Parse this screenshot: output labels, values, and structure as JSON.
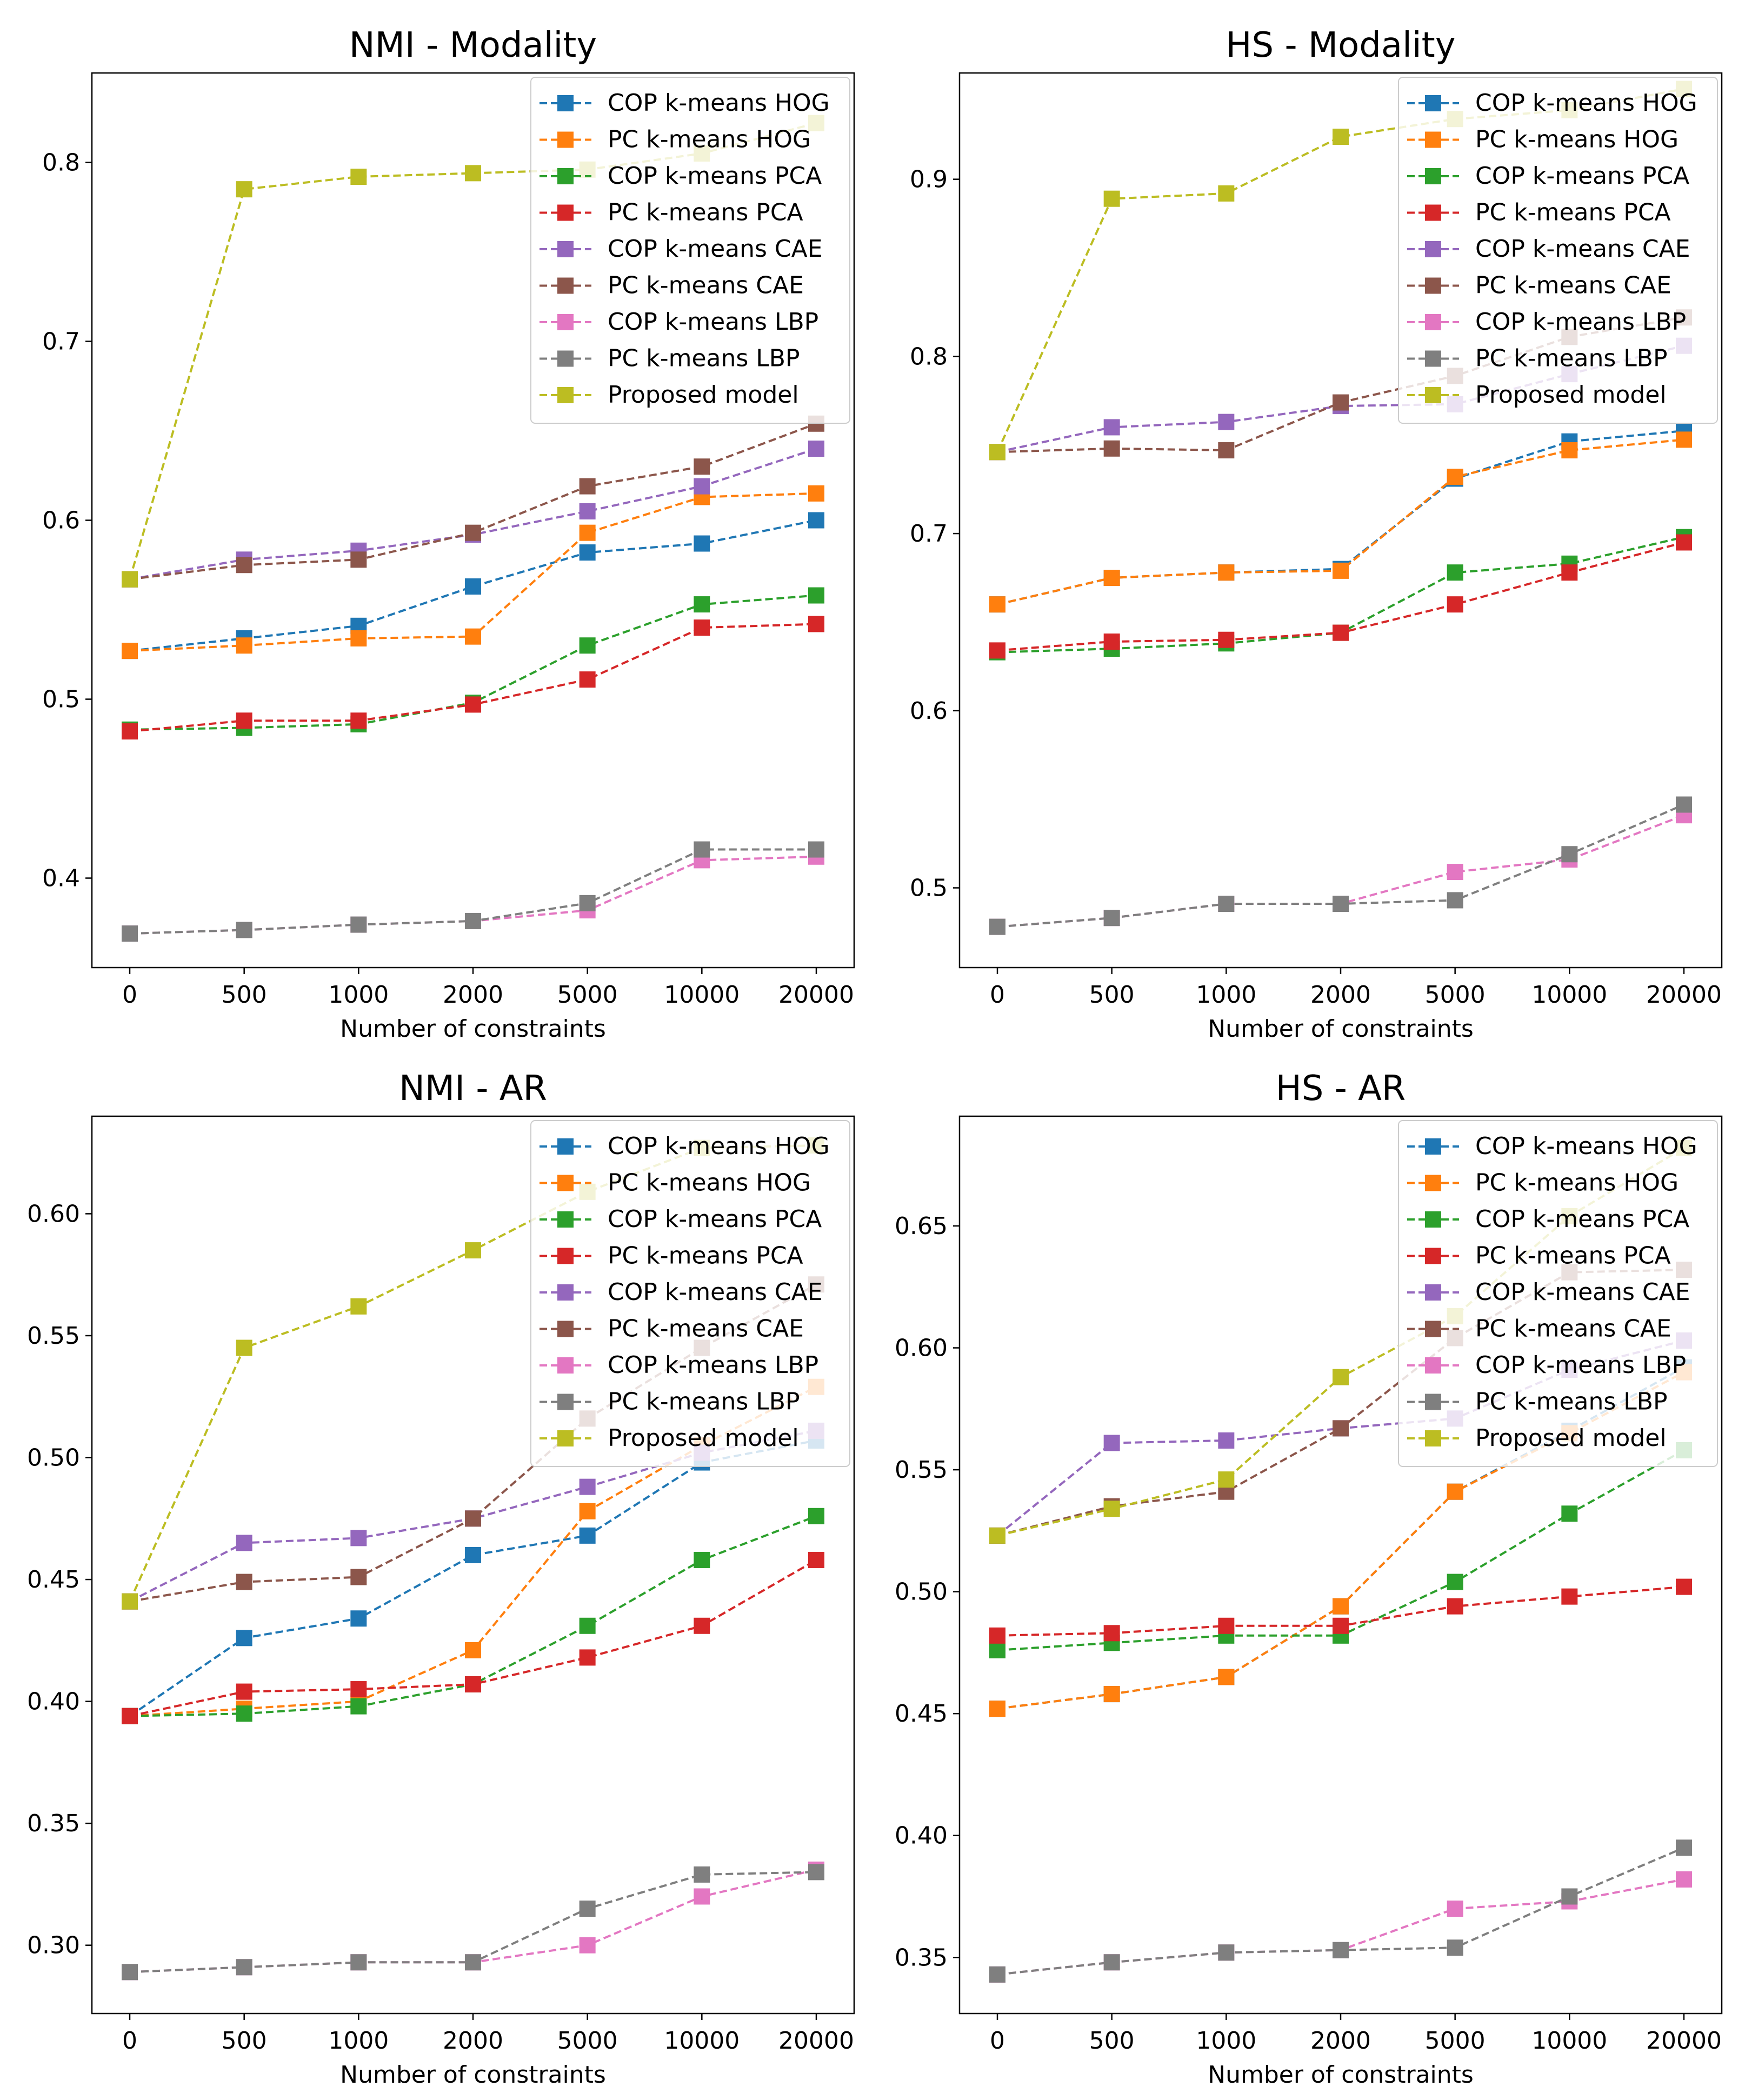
{
  "x_categories": [
    "0",
    "500",
    "1000",
    "2000",
    "5000",
    "10000",
    "20000"
  ],
  "series_colors": {
    "COP k-means HOG": "#1f77b4",
    "PC k-means HOG": "#ff7f0e",
    "COP k-means PCA": "#2ca02c",
    "PC k-means PCA": "#d62728",
    "COP k-means CAE": "#9467bd",
    "PC k-means CAE": "#8c564b",
    "COP k-means LBP": "#e377c2",
    "PC k-means LBP": "#7f7f7f",
    "Proposed model": "#bcbd22"
  },
  "chart_data": [
    {
      "type": "line",
      "title": "NMI - Modality",
      "xlabel": "Number of constraints",
      "ylabel": "",
      "categories": [
        "0",
        "500",
        "1000",
        "2000",
        "5000",
        "10000",
        "20000"
      ],
      "ylim": [
        0.35,
        0.85
      ],
      "yticks": [
        "0.4",
        "0.5",
        "0.6",
        "0.7",
        "0.8"
      ],
      "legend": "top-right",
      "series": [
        {
          "name": "COP k-means HOG",
          "values": [
            0.527,
            0.534,
            0.541,
            0.563,
            0.582,
            0.587,
            0.6
          ]
        },
        {
          "name": "PC k-means HOG",
          "values": [
            0.527,
            0.53,
            0.534,
            0.535,
            0.593,
            0.613,
            0.615
          ]
        },
        {
          "name": "COP k-means PCA",
          "values": [
            0.483,
            0.484,
            0.486,
            0.498,
            0.53,
            0.553,
            0.558
          ]
        },
        {
          "name": "PC k-means PCA",
          "values": [
            0.482,
            0.488,
            0.488,
            0.497,
            0.511,
            0.54,
            0.542
          ]
        },
        {
          "name": "COP k-means CAE",
          "values": [
            0.567,
            0.578,
            0.583,
            0.592,
            0.605,
            0.619,
            0.64
          ]
        },
        {
          "name": "PC k-means CAE",
          "values": [
            0.567,
            0.575,
            0.578,
            0.593,
            0.619,
            0.63,
            0.654
          ]
        },
        {
          "name": "COP k-means LBP",
          "values": [
            0.369,
            0.371,
            0.374,
            0.376,
            0.382,
            0.41,
            0.412
          ]
        },
        {
          "name": "PC k-means LBP",
          "values": [
            0.369,
            0.371,
            0.374,
            0.376,
            0.386,
            0.416,
            0.416
          ]
        },
        {
          "name": "Proposed model",
          "values": [
            0.567,
            0.785,
            0.792,
            0.794,
            0.796,
            0.805,
            0.822
          ]
        }
      ]
    },
    {
      "type": "line",
      "title": "HS - Modality",
      "xlabel": "Number of constraints",
      "ylabel": "",
      "categories": [
        "0",
        "500",
        "1000",
        "2000",
        "5000",
        "10000",
        "20000"
      ],
      "ylim": [
        0.455,
        0.96
      ],
      "yticks": [
        "0.5",
        "0.6",
        "0.7",
        "0.8",
        "0.9"
      ],
      "legend": "top-right",
      "series": [
        {
          "name": "COP k-means HOG",
          "values": [
            0.66,
            0.675,
            0.678,
            0.68,
            0.731,
            0.752,
            0.758
          ]
        },
        {
          "name": "PC k-means HOG",
          "values": [
            0.66,
            0.675,
            0.678,
            0.679,
            0.732,
            0.747,
            0.753
          ]
        },
        {
          "name": "COP k-means PCA",
          "values": [
            0.633,
            0.635,
            0.638,
            0.644,
            0.678,
            0.683,
            0.698
          ]
        },
        {
          "name": "PC k-means PCA",
          "values": [
            0.634,
            0.639,
            0.64,
            0.644,
            0.66,
            0.678,
            0.695
          ]
        },
        {
          "name": "COP k-means CAE",
          "values": [
            0.746,
            0.76,
            0.763,
            0.772,
            0.773,
            0.79,
            0.806
          ]
        },
        {
          "name": "PC k-means CAE",
          "values": [
            0.746,
            0.748,
            0.747,
            0.774,
            0.789,
            0.811,
            0.822
          ]
        },
        {
          "name": "COP k-means LBP",
          "values": [
            0.478,
            0.483,
            0.491,
            0.491,
            0.509,
            0.516,
            0.541
          ]
        },
        {
          "name": "PC k-means LBP",
          "values": [
            0.478,
            0.483,
            0.491,
            0.491,
            0.493,
            0.519,
            0.547
          ]
        },
        {
          "name": "Proposed model",
          "values": [
            0.746,
            0.889,
            0.892,
            0.924,
            0.934,
            0.939,
            0.951
          ]
        }
      ]
    },
    {
      "type": "line",
      "title": "NMI - AR",
      "xlabel": "Number of constraints",
      "ylabel": "",
      "categories": [
        "0",
        "500",
        "1000",
        "2000",
        "5000",
        "10000",
        "20000"
      ],
      "ylim": [
        0.272,
        0.64
      ],
      "yticks": [
        "0.30",
        "0.35",
        "0.40",
        "0.45",
        "0.50",
        "0.55",
        "0.60"
      ],
      "legend": "top-right",
      "series": [
        {
          "name": "COP k-means HOG",
          "values": [
            0.394,
            0.426,
            0.434,
            0.46,
            0.468,
            0.498,
            0.507
          ]
        },
        {
          "name": "PC k-means HOG",
          "values": [
            0.394,
            0.397,
            0.4,
            0.421,
            0.478,
            0.505,
            0.529
          ]
        },
        {
          "name": "COP k-means PCA",
          "values": [
            0.394,
            0.395,
            0.398,
            0.407,
            0.431,
            0.458,
            0.476
          ]
        },
        {
          "name": "PC k-means PCA",
          "values": [
            0.394,
            0.404,
            0.405,
            0.407,
            0.418,
            0.431,
            0.458
          ]
        },
        {
          "name": "COP k-means CAE",
          "values": [
            0.441,
            0.465,
            0.467,
            0.475,
            0.488,
            0.502,
            0.511
          ]
        },
        {
          "name": "PC k-means CAE",
          "values": [
            0.441,
            0.449,
            0.451,
            0.475,
            0.516,
            0.545,
            0.571
          ]
        },
        {
          "name": "COP k-means LBP",
          "values": [
            0.289,
            0.291,
            0.293,
            0.293,
            0.3,
            0.32,
            0.331
          ]
        },
        {
          "name": "PC k-means LBP",
          "values": [
            0.289,
            0.291,
            0.293,
            0.293,
            0.315,
            0.329,
            0.33
          ]
        },
        {
          "name": "Proposed model",
          "values": [
            0.441,
            0.545,
            0.562,
            0.585,
            0.609,
            0.627,
            0.628
          ]
        }
      ]
    },
    {
      "type": "line",
      "title": "HS - AR",
      "xlabel": "Number of constraints",
      "ylabel": "",
      "categories": [
        "0",
        "500",
        "1000",
        "2000",
        "5000",
        "10000",
        "20000"
      ],
      "ylim": [
        0.327,
        0.695
      ],
      "yticks": [
        "0.35",
        "0.40",
        "0.45",
        "0.50",
        "0.55",
        "0.60",
        "0.65"
      ],
      "legend": "top-right",
      "series": [
        {
          "name": "COP k-means HOG",
          "values": [
            0.452,
            0.458,
            0.465,
            0.494,
            0.541,
            0.566,
            0.592
          ]
        },
        {
          "name": "PC k-means HOG",
          "values": [
            0.452,
            0.458,
            0.465,
            0.494,
            0.541,
            0.565,
            0.59
          ]
        },
        {
          "name": "COP k-means PCA",
          "values": [
            0.476,
            0.479,
            0.482,
            0.482,
            0.504,
            0.532,
            0.558
          ]
        },
        {
          "name": "PC k-means PCA",
          "values": [
            0.482,
            0.483,
            0.486,
            0.486,
            0.494,
            0.498,
            0.502
          ]
        },
        {
          "name": "COP k-means CAE",
          "values": [
            0.523,
            0.561,
            0.562,
            0.567,
            0.571,
            0.591,
            0.603
          ]
        },
        {
          "name": "PC k-means CAE",
          "values": [
            0.523,
            0.535,
            0.541,
            0.567,
            0.604,
            0.631,
            0.632
          ]
        },
        {
          "name": "COP k-means LBP",
          "values": [
            0.343,
            0.348,
            0.352,
            0.353,
            0.37,
            0.373,
            0.382
          ]
        },
        {
          "name": "PC k-means LBP",
          "values": [
            0.343,
            0.348,
            0.352,
            0.353,
            0.354,
            0.375,
            0.395
          ]
        },
        {
          "name": "Proposed model",
          "values": [
            0.523,
            0.534,
            0.546,
            0.588,
            0.613,
            0.654,
            0.682
          ]
        }
      ]
    }
  ]
}
